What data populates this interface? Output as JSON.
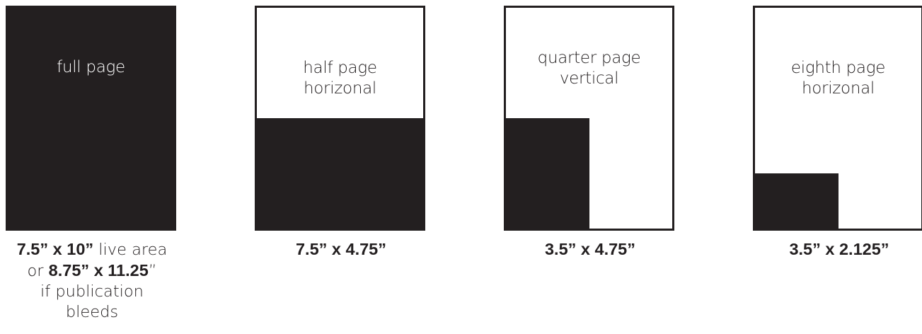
{
  "colors": {
    "ink": "#231f20",
    "paper": "#ffffff"
  },
  "ad_sizes": [
    {
      "label_lines": [
        "full page"
      ],
      "fill_fraction": {
        "width": 1.0,
        "height": 1.0
      },
      "caption": {
        "line1_bold": "7.5” x 10”",
        "line1_rest": " live area",
        "line2_pre": "or ",
        "line2_bold": "8.75” x 11.25",
        "line2_post": "”",
        "line3": "if  publication",
        "line4": "bleeds"
      }
    },
    {
      "label_lines": [
        "half page",
        "horizonal"
      ],
      "fill_fraction": {
        "width": 1.0,
        "height": 0.5
      },
      "caption": "7.5” x 4.75”"
    },
    {
      "label_lines": [
        "quarter page",
        "vertical"
      ],
      "fill_fraction": {
        "width": 0.5,
        "height": 0.5
      },
      "caption": "3.5” x 4.75”"
    },
    {
      "label_lines": [
        "eighth page",
        "horizonal"
      ],
      "fill_fraction": {
        "width": 0.5,
        "height": 0.25
      },
      "caption": "3.5” x 2.125”"
    }
  ]
}
